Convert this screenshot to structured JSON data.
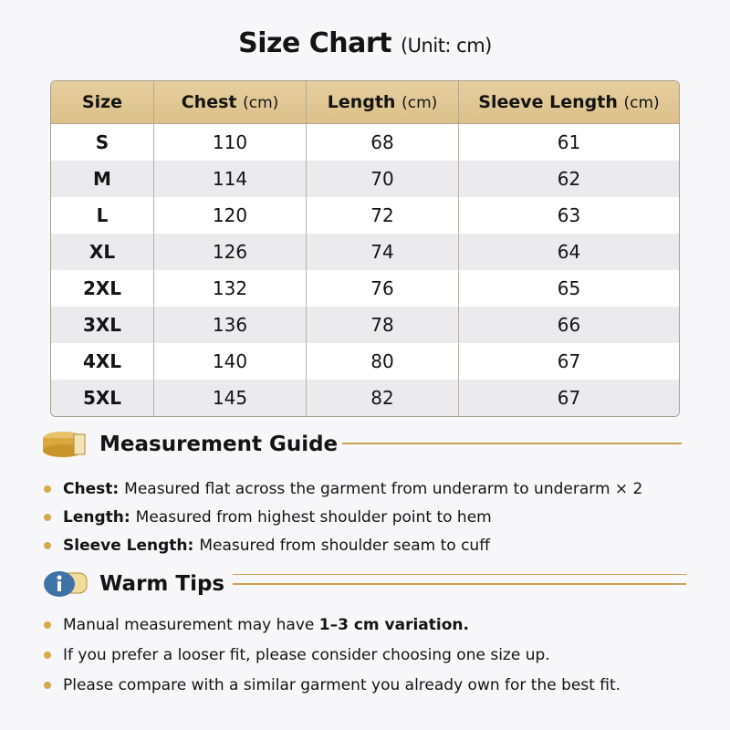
{
  "title": "Size Chart",
  "unit": "(Unit: cm)",
  "columns": [
    {
      "label": "Size",
      "unit": ""
    },
    {
      "label": "Chest",
      "unit": "(cm)"
    },
    {
      "label": "Length",
      "unit": "(cm)"
    },
    {
      "label": "Sleeve Length",
      "unit": "(cm)"
    }
  ],
  "rows": [
    [
      "S",
      "110",
      "68",
      "61"
    ],
    [
      "M",
      "114",
      "70",
      "62"
    ],
    [
      "L",
      "120",
      "72",
      "63"
    ],
    [
      "XL",
      "126",
      "74",
      "64"
    ],
    [
      "2XL",
      "132",
      "76",
      "65"
    ],
    [
      "3XL",
      "136",
      "78",
      "66"
    ],
    [
      "4XL",
      "140",
      "80",
      "67"
    ],
    [
      "5XL",
      "145",
      "82",
      "67"
    ]
  ],
  "guide": {
    "title": "Measurement Guide",
    "icon": "measuring-tape-icon",
    "items": [
      {
        "term": "Chest:",
        "text": "Measured flat across the garment from underarm to underarm × 2"
      },
      {
        "term": "Length:",
        "text": "Measured from highest shoulder point to hem"
      },
      {
        "term": "Sleeve Length:",
        "text": "Measured from shoulder seam to cuff"
      }
    ]
  },
  "tips": {
    "title": "Warm Tips",
    "icon": "info-icon",
    "items": [
      {
        "pre": "Manual measurement may have ",
        "bold": "1–3 cm variation.",
        "post": ""
      },
      {
        "pre": "If you prefer a looser fit, please consider choosing one size up.",
        "bold": "",
        "post": ""
      },
      {
        "pre": "Please compare with a similar garment you already own for the best fit.",
        "bold": "",
        "post": ""
      }
    ]
  },
  "colors": {
    "header": "#dcc08a",
    "accent": "#c9a24f",
    "stripe": "#ebeaec"
  }
}
